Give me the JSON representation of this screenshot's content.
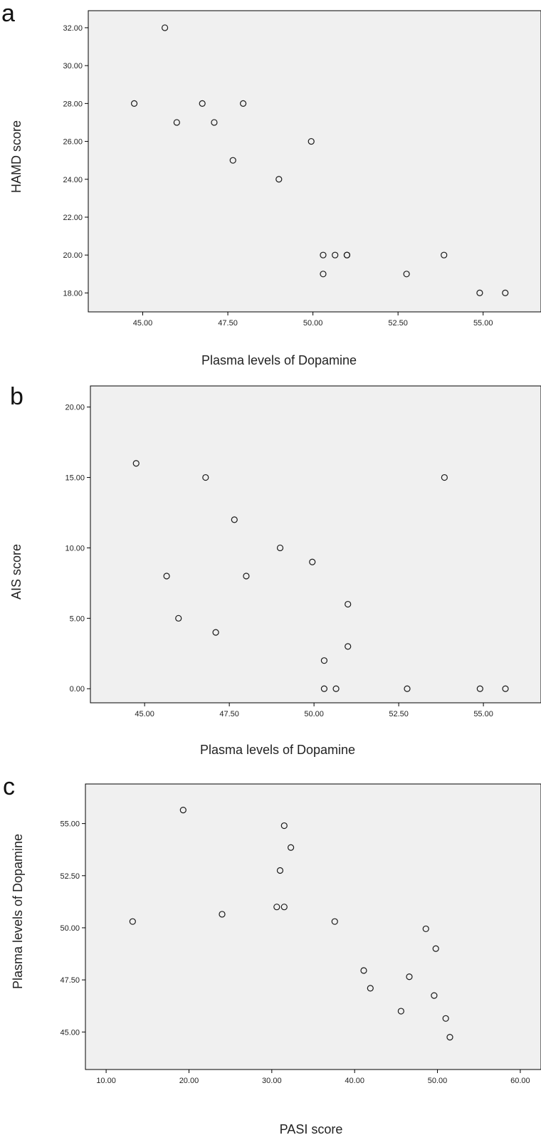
{
  "colors": {
    "plot_background": "#f0f0f0",
    "marker_stroke": "#1a1a1a",
    "axis": "#000000"
  },
  "chart_data": [
    {
      "type": "scatter",
      "panel_label": "a",
      "xlabel": "Plasma levels of Dopamine",
      "ylabel": "HAMD score",
      "xlim": [
        43.4,
        56.7
      ],
      "ylim": [
        17.0,
        32.9
      ],
      "xticks": [
        "45.00",
        "47.50",
        "50.00",
        "52.50",
        "55.00"
      ],
      "yticks": [
        "18.00",
        "20.00",
        "22.00",
        "24.00",
        "26.00",
        "28.00",
        "30.00",
        "32.00"
      ],
      "x": [
        45.65,
        44.75,
        46.0,
        46.75,
        47.1,
        47.95,
        47.65,
        49.0,
        49.95,
        50.3,
        50.65,
        51.0,
        51.0,
        50.3,
        52.75,
        53.85,
        54.9,
        55.65
      ],
      "y": [
        32.0,
        28.0,
        27.0,
        28.0,
        27.0,
        28.0,
        25.0,
        24.0,
        26.0,
        20.0,
        20.0,
        20.0,
        20.0,
        19.0,
        19.0,
        20.0,
        18.0,
        18.0
      ]
    },
    {
      "type": "scatter",
      "panel_label": "b",
      "xlabel": "Plasma levels of Dopamine",
      "ylabel": "AIS score",
      "xlim": [
        43.4,
        56.7
      ],
      "ylim": [
        -1.0,
        21.5
      ],
      "xticks": [
        "45.00",
        "47.50",
        "50.00",
        "52.50",
        "55.00"
      ],
      "yticks": [
        "0.00",
        "5.00",
        "10.00",
        "15.00",
        "20.00"
      ],
      "x": [
        44.75,
        46.8,
        47.65,
        45.65,
        46.0,
        47.1,
        48.0,
        49.0,
        49.95,
        50.3,
        50.3,
        50.65,
        51.0,
        51.0,
        52.75,
        53.85,
        54.9,
        55.65
      ],
      "y": [
        16.0,
        15.0,
        12.0,
        8.0,
        5.0,
        4.0,
        8.0,
        10.0,
        9.0,
        2.0,
        0.0,
        0.0,
        6.0,
        3.0,
        0.0,
        15.0,
        0.0,
        0.0
      ]
    },
    {
      "type": "scatter",
      "panel_label": "c",
      "xlabel": "PASI score",
      "ylabel": "Plasma levels of Dopamine",
      "xlim": [
        7.5,
        62.5
      ],
      "ylim": [
        43.2,
        56.9
      ],
      "xticks": [
        "10.00",
        "20.00",
        "30.00",
        "40.00",
        "50.00",
        "60.00"
      ],
      "yticks": [
        "45.00",
        "47.50",
        "50.00",
        "52.50",
        "55.00"
      ],
      "x": [
        19.3,
        31.5,
        32.3,
        31.0,
        30.6,
        31.5,
        24.0,
        13.2,
        37.6,
        48.6,
        49.8,
        41.1,
        41.9,
        46.6,
        49.6,
        45.6,
        51.0,
        51.5
      ],
      "y": [
        55.65,
        54.9,
        53.85,
        52.75,
        51.0,
        51.0,
        50.65,
        50.3,
        50.3,
        49.95,
        49.0,
        47.95,
        47.1,
        47.65,
        46.75,
        46.0,
        45.65,
        44.75
      ]
    }
  ]
}
